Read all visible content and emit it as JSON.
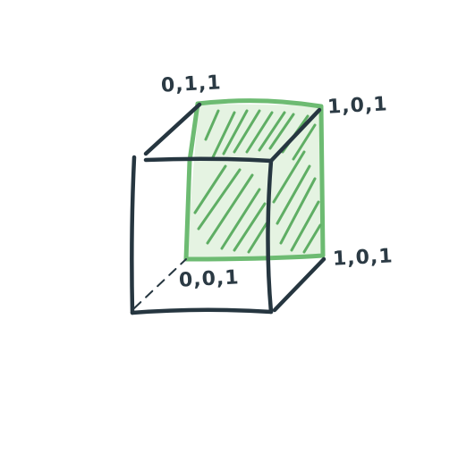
{
  "diagram": {
    "labels": {
      "top_back_left": "0,1,1",
      "top_back_right": "1,0,1",
      "mid_back_right": "1,0,1",
      "inner_bottom": "0,0,1"
    },
    "colors": {
      "ink": "#263640",
      "highlight_stroke": "#6dbb72",
      "highlight_fill": "#a8d8a6",
      "hatch": "#5fae64"
    },
    "highlighted_face": "back-right vertical face (hatched green)"
  }
}
